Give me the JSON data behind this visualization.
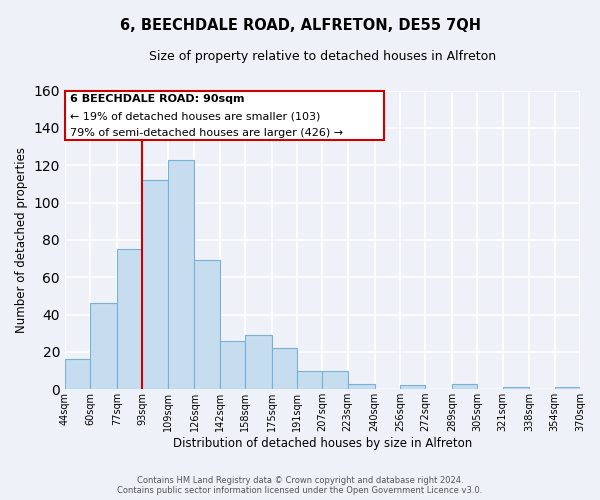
{
  "title": "6, BEECHDALE ROAD, ALFRETON, DE55 7QH",
  "subtitle": "Size of property relative to detached houses in Alfreton",
  "xlabel": "Distribution of detached houses by size in Alfreton",
  "ylabel": "Number of detached properties",
  "bar_color": "#c5ddef",
  "bar_edge_color": "#7ab0d4",
  "background_color": "#eef2f8",
  "grid_color": "#ffffff",
  "tick_labels": [
    "44sqm",
    "60sqm",
    "77sqm",
    "93sqm",
    "109sqm",
    "126sqm",
    "142sqm",
    "158sqm",
    "175sqm",
    "191sqm",
    "207sqm",
    "223sqm",
    "240sqm",
    "256sqm",
    "272sqm",
    "289sqm",
    "305sqm",
    "321sqm",
    "338sqm",
    "354sqm",
    "370sqm"
  ],
  "bar_heights": [
    16,
    46,
    75,
    112,
    123,
    69,
    26,
    29,
    22,
    10,
    10,
    3,
    0,
    2,
    0,
    3,
    0,
    1,
    0,
    1
  ],
  "bin_edges": [
    44,
    60,
    77,
    93,
    109,
    126,
    142,
    158,
    175,
    191,
    207,
    223,
    240,
    256,
    272,
    289,
    305,
    321,
    338,
    354,
    370
  ],
  "ylim": [
    0,
    160
  ],
  "yticks": [
    0,
    20,
    40,
    60,
    80,
    100,
    120,
    140,
    160
  ],
  "property_line_x": 93,
  "property_line_color": "#cc0000",
  "annotation_title": "6 BEECHDALE ROAD: 90sqm",
  "annotation_line1": "← 19% of detached houses are smaller (103)",
  "annotation_line2": "79% of semi-detached houses are larger (426) →",
  "annotation_box_color": "#ffffff",
  "annotation_border_color": "#cc0000",
  "footer_line1": "Contains HM Land Registry data © Crown copyright and database right 2024.",
  "footer_line2": "Contains public sector information licensed under the Open Government Licence v3.0."
}
